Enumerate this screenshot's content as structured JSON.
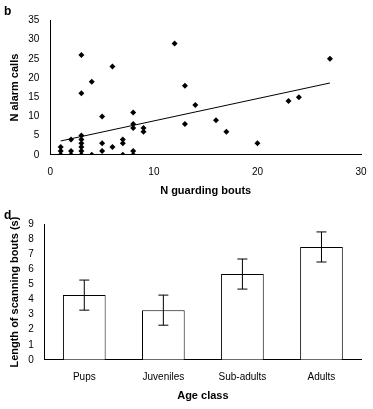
{
  "chart_data": [
    {
      "type": "scatter",
      "title": "b",
      "x_label": "N guarding bouts",
      "y_label": "N alarm calls",
      "x": [
        1,
        1,
        1,
        2,
        2,
        2,
        3,
        3,
        3,
        3,
        3,
        3,
        3,
        3,
        4,
        4,
        5,
        5,
        5,
        6,
        6,
        7,
        7,
        7,
        8,
        8,
        8,
        8,
        8,
        9,
        9,
        12,
        13,
        13,
        14,
        16,
        17,
        20,
        23,
        24,
        27
      ],
      "values": [
        2,
        1,
        0,
        4,
        1,
        0,
        26,
        16,
        5,
        4,
        3,
        2,
        1,
        0,
        19,
        0,
        10,
        3,
        1,
        23,
        2,
        4,
        3,
        0,
        11,
        8,
        7,
        1,
        0,
        7,
        6,
        29,
        18,
        8,
        13,
        9,
        6,
        3,
        14,
        15,
        25
      ],
      "trend": {
        "x": [
          1,
          27
        ],
        "values": [
          3.6,
          18.7
        ]
      },
      "color": "#000000",
      "marker": "diamond",
      "xlim": [
        0,
        30
      ],
      "xticks": [
        0,
        10,
        20,
        30
      ],
      "ylim": [
        0,
        35
      ],
      "yticks": [
        0,
        5,
        10,
        15,
        20,
        25,
        30,
        35
      ],
      "grid": false
    },
    {
      "type": "bar",
      "title": "d",
      "x_label": "Age class",
      "y_label": "Length of scanning bouts (s)",
      "categories": [
        "Pups",
        "Juveniles",
        "Sub-adults",
        "Adults"
      ],
      "values": [
        4.3,
        3.3,
        5.7,
        7.5
      ],
      "errors": [
        1.0,
        1.0,
        1.0,
        1.0
      ],
      "color": "#ffffff",
      "ylim": [
        0,
        9
      ],
      "yticks": [
        0,
        1,
        2,
        3,
        4,
        5,
        6,
        7,
        8,
        9
      ],
      "grid": false
    }
  ]
}
